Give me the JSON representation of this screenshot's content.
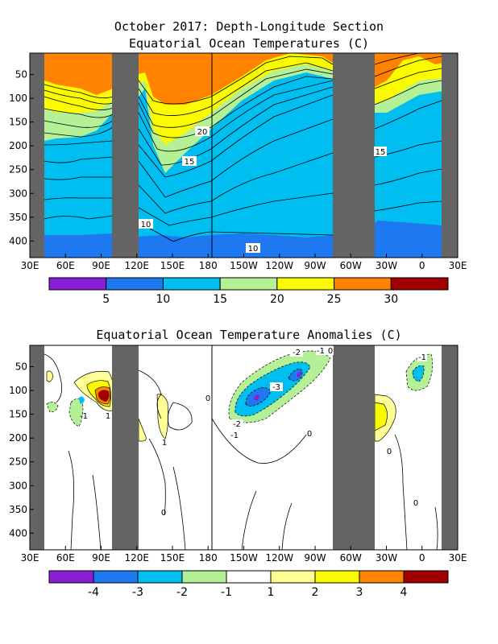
{
  "chart_data": [
    {
      "type": "heatmap",
      "title": "October 2017: Depth-Longitude Section",
      "subtitle": "Equatorial Ocean Temperatures (C)",
      "xlabel": "",
      "ylabel": "",
      "x_ticks": [
        "30E",
        "60E",
        "90E",
        "120E",
        "150E",
        "180",
        "150W",
        "120W",
        "90W",
        "60W",
        "30W",
        "0",
        "30E"
      ],
      "y_ticks": [
        50,
        100,
        150,
        200,
        250,
        300,
        350,
        400
      ],
      "ylim": [
        435,
        5
      ],
      "colorbar": {
        "bounds": [
          0,
          5,
          10,
          15,
          20,
          25,
          30,
          35
        ],
        "labels": [
          "5",
          "10",
          "15",
          "20",
          "25",
          "30"
        ],
        "colors": [
          "#8a1ed6",
          "#1e78f0",
          "#00bef0",
          "#b4f096",
          "#fafa00",
          "#ff8200",
          "#a00000"
        ]
      },
      "land_masks_lon": [
        [
          30,
          45
        ],
        [
          102,
          118
        ],
        [
          283,
          314
        ],
        [
          350,
          370
        ]
      ],
      "grid": false,
      "contour_labels": [
        "20",
        "15",
        "10",
        "10",
        "15"
      ]
    },
    {
      "type": "heatmap",
      "title": "Equatorial Ocean Temperature Anomalies (C)",
      "xlabel": "",
      "ylabel": "",
      "x_ticks": [
        "30E",
        "60E",
        "90E",
        "120E",
        "150E",
        "180",
        "150W",
        "120W",
        "90W",
        "60W",
        "30W",
        "0",
        "30E"
      ],
      "y_ticks": [
        50,
        100,
        150,
        200,
        250,
        300,
        350,
        400
      ],
      "ylim": [
        435,
        5
      ],
      "colorbar": {
        "bounds": [
          -5,
          -4,
          -3,
          -2,
          -1,
          1,
          2,
          3,
          4,
          5
        ],
        "labels": [
          "-4",
          "-3",
          "-2",
          "-1",
          "1",
          "2",
          "3",
          "4"
        ],
        "colors": [
          "#8a1ed6",
          "#1e78f0",
          "#00bef0",
          "#b4f096",
          "#ffffff",
          "#ffff96",
          "#fafa00",
          "#ff8200",
          "#a00000"
        ]
      },
      "land_masks_lon": [
        [
          30,
          45
        ],
        [
          102,
          118
        ],
        [
          283,
          314
        ],
        [
          350,
          370
        ]
      ],
      "grid": false,
      "contour_labels": [
        "-2",
        "-1",
        "0",
        "-3",
        "-2",
        "-1",
        "0",
        "1",
        "0",
        "0",
        "0",
        "-1",
        "1",
        "-1",
        "0"
      ]
    }
  ]
}
